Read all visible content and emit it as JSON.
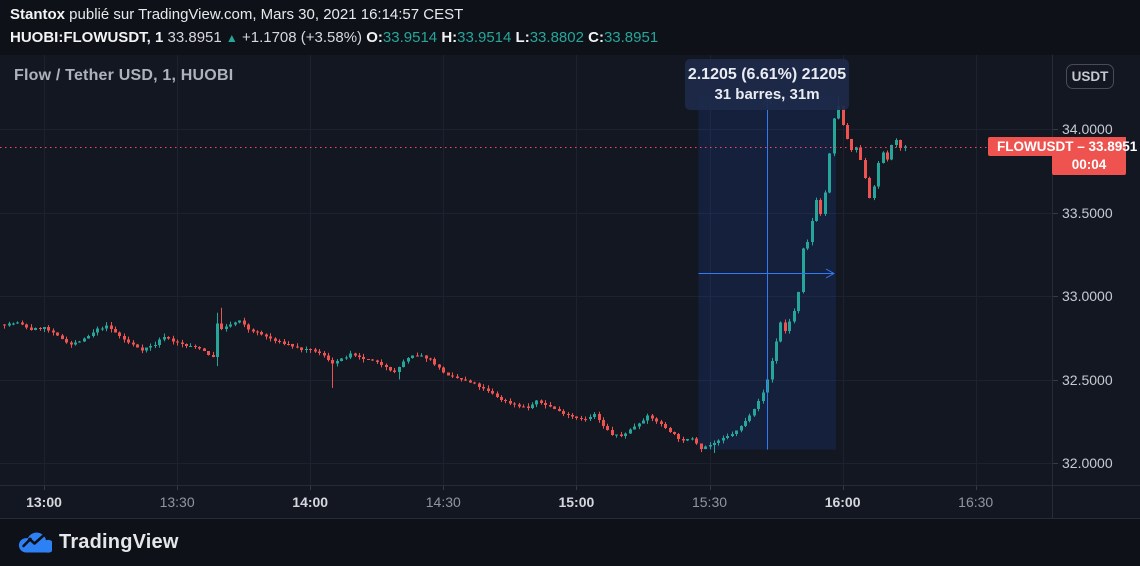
{
  "header": {
    "author": "Stantox",
    "publish_info": " publié sur TradingView.com, Mars 30, 2021 16:14:57 CEST",
    "symbol_line": {
      "symbol": "HUOBI:FLOWUSDT, 1",
      "last": "33.8951",
      "direction_arrow": "▲",
      "change": "+1.1708 (+3.58%)",
      "open_label": "O:",
      "open": "33.9514",
      "high_label": "H:",
      "high": "33.9514",
      "low_label": "L:",
      "low": "33.8802",
      "close_label": "C:",
      "close": "33.8951"
    }
  },
  "chart": {
    "title": "Flow / Tether USD, 1, HUOBI",
    "currency_button": "USDT",
    "price_label": {
      "text": "FLOWUSDT – 33.8951",
      "countdown": "00:04",
      "price": 33.8951
    }
  },
  "footer": {
    "logo_text": "TradingView"
  },
  "colors": {
    "up": "#26a69a",
    "down": "#ef5350",
    "label_red": "#ef5350",
    "measure_blue": "#3179f5",
    "measure_fill": "rgba(41,98,255,0.12)",
    "grid": "#1d2130",
    "last_price_line": "#f4485a"
  },
  "chart_data": {
    "type": "candlestick",
    "symbol": "FLOWUSDT",
    "exchange": "HUOBI",
    "interval_minutes": 1,
    "last_price": 33.8951,
    "y_axis": {
      "ticks": [
        {
          "label": "34.0000",
          "price": 34.0
        },
        {
          "label": "33.5000",
          "price": 33.5
        },
        {
          "label": "33.0000",
          "price": 33.0
        },
        {
          "label": "32.5000",
          "price": 32.5
        },
        {
          "label": "32.0000",
          "price": 32.0
        }
      ]
    },
    "x_axis": {
      "ticks": [
        {
          "label": "13:00",
          "t": 0,
          "major": true
        },
        {
          "label": "13:30",
          "t": 30,
          "major": false
        },
        {
          "label": "14:00",
          "t": 60,
          "major": true
        },
        {
          "label": "14:30",
          "t": 90,
          "major": false
        },
        {
          "label": "15:00",
          "t": 120,
          "major": true
        },
        {
          "label": "15:30",
          "t": 150,
          "major": false
        },
        {
          "label": "16:00",
          "t": 180,
          "major": true
        },
        {
          "label": "16:30",
          "t": 210,
          "major": false
        }
      ]
    },
    "t_start": -9,
    "t_end": 194,
    "price_path": [
      [
        -9,
        32.83
      ],
      [
        -6,
        32.84
      ],
      [
        -3,
        32.8
      ],
      [
        0,
        32.81
      ],
      [
        3,
        32.76
      ],
      [
        6,
        32.71
      ],
      [
        9,
        32.74
      ],
      [
        12,
        32.8
      ],
      [
        14,
        32.82
      ],
      [
        16,
        32.78
      ],
      [
        19,
        32.72
      ],
      [
        22,
        32.68
      ],
      [
        25,
        32.71
      ],
      [
        27,
        32.76
      ],
      [
        29,
        32.73
      ],
      [
        32,
        32.7
      ],
      [
        35,
        32.69
      ],
      [
        38,
        32.63
      ],
      [
        39,
        32.84
      ],
      [
        40,
        32.8
      ],
      [
        42,
        32.83
      ],
      [
        44,
        32.85
      ],
      [
        46,
        32.8
      ],
      [
        49,
        32.77
      ],
      [
        52,
        32.73
      ],
      [
        55,
        32.71
      ],
      [
        58,
        32.68
      ],
      [
        61,
        32.67
      ],
      [
        63,
        32.64
      ],
      [
        65,
        32.6
      ],
      [
        67,
        32.62
      ],
      [
        69,
        32.65
      ],
      [
        71,
        32.63
      ],
      [
        74,
        32.61
      ],
      [
        77,
        32.58
      ],
      [
        79,
        32.54
      ],
      [
        81,
        32.61
      ],
      [
        83,
        32.64
      ],
      [
        85,
        32.64
      ],
      [
        87,
        32.62
      ],
      [
        89,
        32.57
      ],
      [
        91,
        32.52
      ],
      [
        94,
        32.5
      ],
      [
        97,
        32.47
      ],
      [
        100,
        32.43
      ],
      [
        103,
        32.38
      ],
      [
        106,
        32.35
      ],
      [
        109,
        32.33
      ],
      [
        111,
        32.37
      ],
      [
        113,
        32.35
      ],
      [
        116,
        32.31
      ],
      [
        119,
        32.28
      ],
      [
        122,
        32.26
      ],
      [
        124,
        32.29
      ],
      [
        126,
        32.22
      ],
      [
        128,
        32.17
      ],
      [
        130,
        32.16
      ],
      [
        132,
        32.2
      ],
      [
        134,
        32.24
      ],
      [
        136,
        32.28
      ],
      [
        138,
        32.25
      ],
      [
        140,
        32.21
      ],
      [
        142,
        32.17
      ],
      [
        144,
        32.13
      ],
      [
        146,
        32.15
      ],
      [
        148,
        32.09
      ],
      [
        150,
        32.11
      ],
      [
        152,
        32.13
      ],
      [
        154,
        32.16
      ],
      [
        156,
        32.19
      ],
      [
        158,
        32.25
      ],
      [
        160,
        32.33
      ],
      [
        162,
        32.42
      ],
      [
        163,
        32.5
      ],
      [
        164,
        32.61
      ],
      [
        165,
        32.73
      ],
      [
        166,
        32.84
      ],
      [
        167,
        32.79
      ],
      [
        168,
        32.85
      ],
      [
        169,
        32.91
      ],
      [
        170,
        33.02
      ],
      [
        171,
        33.28
      ],
      [
        172,
        33.32
      ],
      [
        173,
        33.45
      ],
      [
        174,
        33.58
      ],
      [
        175,
        33.49
      ],
      [
        176,
        33.62
      ],
      [
        177,
        33.85
      ],
      [
        178,
        34.06
      ],
      [
        179,
        34.14
      ],
      [
        180,
        34.02
      ],
      [
        181,
        33.94
      ],
      [
        182,
        33.87
      ],
      [
        183,
        33.89
      ],
      [
        184,
        33.81
      ],
      [
        185,
        33.71
      ],
      [
        186,
        33.59
      ],
      [
        187,
        33.66
      ],
      [
        188,
        33.79
      ],
      [
        189,
        33.86
      ],
      [
        190,
        33.82
      ],
      [
        191,
        33.9
      ],
      [
        192,
        33.94
      ],
      [
        193,
        33.88
      ],
      [
        194,
        33.8951
      ]
    ],
    "wick_overrides": [
      {
        "t": 39,
        "low": 32.58,
        "high": 32.9
      },
      {
        "t": 40,
        "high": 32.93
      },
      {
        "t": 65,
        "low": 32.45
      },
      {
        "t": 80,
        "low": 32.5
      },
      {
        "t": 148,
        "low": 32.065
      },
      {
        "t": 151,
        "low": 32.06
      },
      {
        "t": 179,
        "high": 34.195
      }
    ],
    "measurement": {
      "label_line1": "2.1205 (6.61%) 21205",
      "label_line2": "31 barres, 31m",
      "price_change": 2.1205,
      "percent": "6.61%",
      "ticks": 21205,
      "bars": 31,
      "duration": "31m",
      "t_from": 147.5,
      "t_to": 178.5,
      "price_from": 32.08,
      "price_to": 34.2
    }
  }
}
